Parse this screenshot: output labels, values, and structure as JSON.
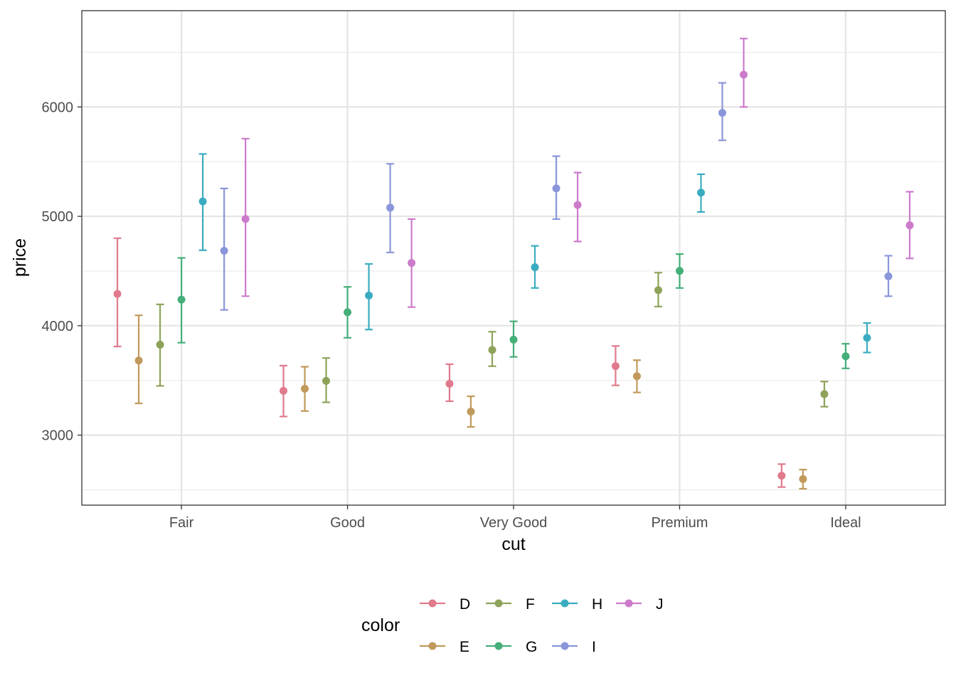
{
  "chart_data": {
    "type": "errorbar",
    "xlabel": "cut",
    "ylabel": "price",
    "categories": [
      "Fair",
      "Good",
      "Very Good",
      "Premium",
      "Ideal"
    ],
    "y_ticks": [
      3000,
      4000,
      5000,
      6000
    ],
    "ylim": [
      2360,
      6880
    ],
    "grid": true,
    "legend": {
      "title": "color",
      "position": "bottom"
    },
    "series": [
      {
        "name": "D",
        "color": "#E07A8C",
        "points": [
          {
            "x": "Fair",
            "y": 4291,
            "ymin": 3810,
            "ymax": 4800
          },
          {
            "x": "Good",
            "y": 3405,
            "ymin": 3170,
            "ymax": 3635
          },
          {
            "x": "Very Good",
            "y": 3470,
            "ymin": 3310,
            "ymax": 3648
          },
          {
            "x": "Premium",
            "y": 3631,
            "ymin": 3455,
            "ymax": 3815
          },
          {
            "x": "Ideal",
            "y": 2629,
            "ymin": 2525,
            "ymax": 2735
          }
        ]
      },
      {
        "name": "E",
        "color": "#C19A5B",
        "points": [
          {
            "x": "Fair",
            "y": 3682,
            "ymin": 3290,
            "ymax": 4095
          },
          {
            "x": "Good",
            "y": 3424,
            "ymin": 3220,
            "ymax": 3625
          },
          {
            "x": "Very Good",
            "y": 3215,
            "ymin": 3075,
            "ymax": 3355
          },
          {
            "x": "Premium",
            "y": 3539,
            "ymin": 3390,
            "ymax": 3685
          },
          {
            "x": "Ideal",
            "y": 2598,
            "ymin": 2510,
            "ymax": 2685
          }
        ]
      },
      {
        "name": "F",
        "color": "#8EA35A",
        "points": [
          {
            "x": "Fair",
            "y": 3827,
            "ymin": 3450,
            "ymax": 4195
          },
          {
            "x": "Good",
            "y": 3496,
            "ymin": 3300,
            "ymax": 3705
          },
          {
            "x": "Very Good",
            "y": 3779,
            "ymin": 3630,
            "ymax": 3945
          },
          {
            "x": "Premium",
            "y": 4325,
            "ymin": 4175,
            "ymax": 4485
          },
          {
            "x": "Ideal",
            "y": 3375,
            "ymin": 3260,
            "ymax": 3490
          }
        ]
      },
      {
        "name": "G",
        "color": "#45AE79",
        "points": [
          {
            "x": "Fair",
            "y": 4239,
            "ymin": 3845,
            "ymax": 4620
          },
          {
            "x": "Good",
            "y": 4123,
            "ymin": 3890,
            "ymax": 4355
          },
          {
            "x": "Very Good",
            "y": 3873,
            "ymin": 3715,
            "ymax": 4040
          },
          {
            "x": "Premium",
            "y": 4501,
            "ymin": 4345,
            "ymax": 4655
          },
          {
            "x": "Ideal",
            "y": 3721,
            "ymin": 3610,
            "ymax": 3835
          }
        ]
      },
      {
        "name": "H",
        "color": "#3AACC0",
        "points": [
          {
            "x": "Fair",
            "y": 5136,
            "ymin": 4690,
            "ymax": 5570
          },
          {
            "x": "Good",
            "y": 4276,
            "ymin": 3965,
            "ymax": 4565
          },
          {
            "x": "Very Good",
            "y": 4535,
            "ymin": 4345,
            "ymax": 4730
          },
          {
            "x": "Premium",
            "y": 5217,
            "ymin": 5040,
            "ymax": 5385
          },
          {
            "x": "Ideal",
            "y": 3889,
            "ymin": 3755,
            "ymax": 4025
          }
        ]
      },
      {
        "name": "I",
        "color": "#8A96D9",
        "points": [
          {
            "x": "Fair",
            "y": 4685,
            "ymin": 4145,
            "ymax": 5255
          },
          {
            "x": "Good",
            "y": 5079,
            "ymin": 4670,
            "ymax": 5480
          },
          {
            "x": "Very Good",
            "y": 5256,
            "ymin": 4975,
            "ymax": 5550
          },
          {
            "x": "Premium",
            "y": 5946,
            "ymin": 5695,
            "ymax": 6220
          },
          {
            "x": "Ideal",
            "y": 4452,
            "ymin": 4270,
            "ymax": 4640
          }
        ]
      },
      {
        "name": "J",
        "color": "#CC7BCB",
        "points": [
          {
            "x": "Fair",
            "y": 4976,
            "ymin": 4270,
            "ymax": 5710
          },
          {
            "x": "Good",
            "y": 4574,
            "ymin": 4170,
            "ymax": 4975
          },
          {
            "x": "Very Good",
            "y": 5104,
            "ymin": 4770,
            "ymax": 5400
          },
          {
            "x": "Premium",
            "y": 6295,
            "ymin": 6000,
            "ymax": 6625
          },
          {
            "x": "Ideal",
            "y": 4918,
            "ymin": 4615,
            "ymax": 5225
          }
        ]
      }
    ]
  }
}
